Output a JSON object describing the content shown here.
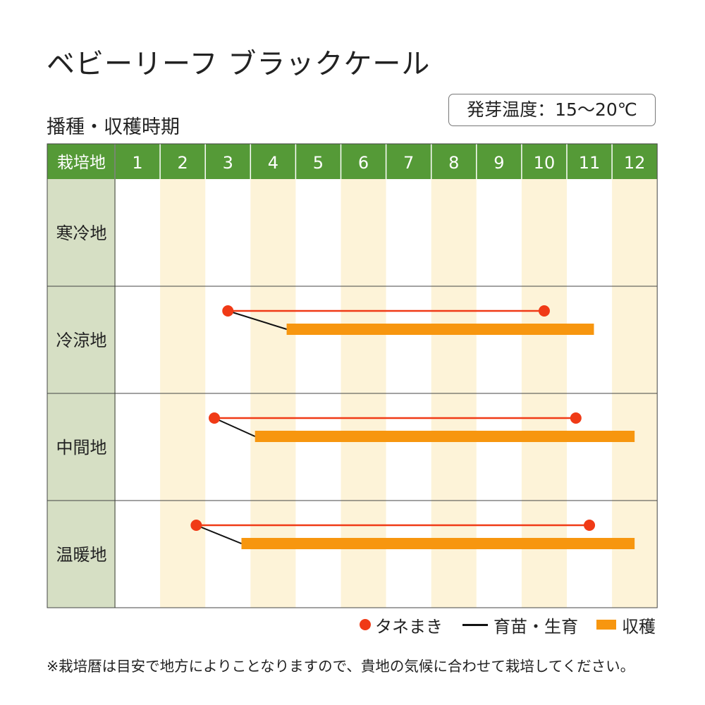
{
  "title": "ベビーリーフ ブラックケール",
  "subtitle": "播種・収穫時期",
  "germination_temp": "発芽温度：15～20℃",
  "footnote": "※栽培暦は目安で地方によりことなりますので、貴地の気候に合わせて栽培してください。",
  "colors": {
    "header_green": "#559a37",
    "row_label_bg": "#d6dfc4",
    "stripe": "#fdf3d8",
    "sowing": "#f03a16",
    "seedling": "#111111",
    "harvest": "#f7960f"
  },
  "legend": {
    "sowing": "タネまき",
    "seedling": "育苗・生育",
    "harvest": "収穫"
  },
  "chart_data": {
    "type": "gantt",
    "header_label": "栽培地",
    "months": [
      "1",
      "2",
      "3",
      "4",
      "5",
      "6",
      "7",
      "8",
      "9",
      "10",
      "11",
      "12"
    ],
    "regions": [
      {
        "name": "寒冷地",
        "sowing": null,
        "harvest": null
      },
      {
        "name": "冷涼地",
        "sowing": [
          3.5,
          10.5
        ],
        "harvest": [
          4.8,
          11.6
        ]
      },
      {
        "name": "中間地",
        "sowing": [
          3.2,
          11.2
        ],
        "harvest": [
          4.1,
          12.5
        ]
      },
      {
        "name": "温暖地",
        "sowing": [
          2.8,
          11.5
        ],
        "harvest": [
          3.8,
          12.5
        ]
      }
    ]
  }
}
